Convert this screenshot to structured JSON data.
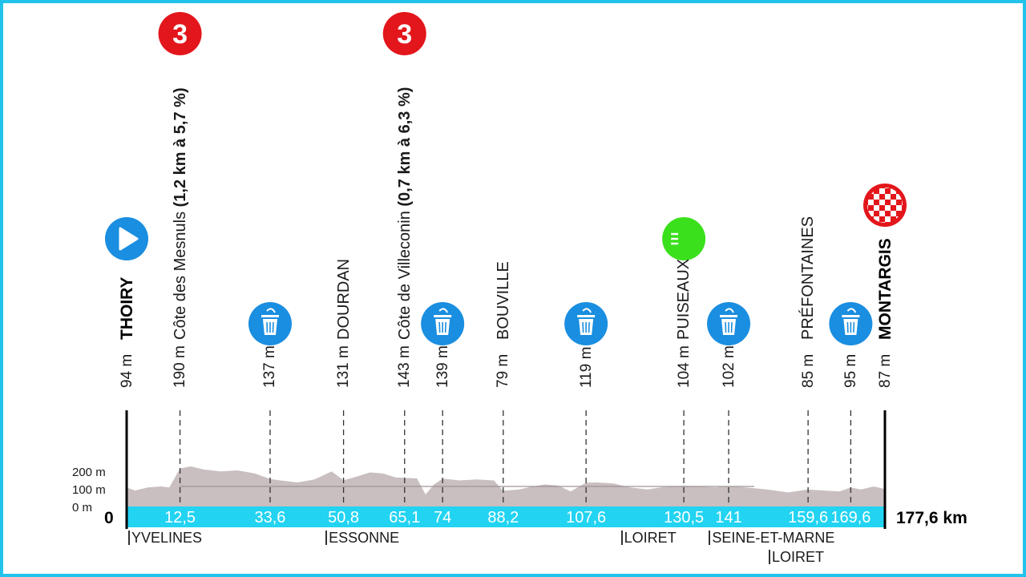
{
  "chart_data": {
    "type": "area",
    "xlabel": "",
    "ylabel": "",
    "total_distance_label": "177,6 km",
    "start_distance_label": "0",
    "x_unit": "km",
    "y_unit": "m",
    "xlim": [
      0,
      177.6
    ],
    "ylim": [
      0,
      200
    ],
    "y_ticks": [
      "0 m",
      "100 m",
      "200 m"
    ],
    "points_of_interest": [
      {
        "km": 0,
        "km_label": "",
        "altitude": "94 m",
        "name": "THOIRY",
        "bold": true,
        "icon": "start-icon"
      },
      {
        "km": 12.5,
        "km_label": "12,5",
        "altitude": "190 m",
        "name": "Côte des Mesnuls",
        "climb": "(1,2 km à 5,7 %)",
        "icon": "kom-cat3-icon",
        "cat": "3"
      },
      {
        "km": 33.6,
        "km_label": "33,6",
        "altitude": "137 m",
        "name": "",
        "icon": "bin-icon"
      },
      {
        "km": 50.8,
        "km_label": "50,8",
        "altitude": "131 m",
        "name": "DOURDAN"
      },
      {
        "km": 65.1,
        "km_label": "65,1",
        "altitude": "143 m",
        "name": "Côte de Villeconin",
        "climb": "(0,7 km à 6,3 %)",
        "icon": "kom-cat3-icon",
        "cat": "3"
      },
      {
        "km": 74,
        "km_label": "74",
        "altitude": "139 m",
        "name": "",
        "icon": "bin-icon"
      },
      {
        "km": 88.2,
        "km_label": "88,2",
        "altitude": "79 m",
        "name": "BOUVILLE"
      },
      {
        "km": 107.6,
        "km_label": "107,6",
        "altitude": "119 m",
        "name": "",
        "icon": "bin-icon"
      },
      {
        "km": 130.5,
        "km_label": "130,5",
        "altitude": "104 m",
        "name": "PUISEAUX",
        "icon": "sprint-icon",
        "sprint": "S"
      },
      {
        "km": 141,
        "km_label": "141",
        "altitude": "102 m",
        "name": "",
        "icon": "bin-icon"
      },
      {
        "km": 159.6,
        "km_label": "159,6",
        "altitude": "85 m",
        "name": "PRÉFONTAINES"
      },
      {
        "km": 169.6,
        "km_label": "169,6",
        "altitude": "95 m",
        "name": "",
        "icon": "bin-icon"
      },
      {
        "km": 177.6,
        "km_label": "",
        "altitude": "87 m",
        "name": "MONTARGIS",
        "bold": true,
        "icon": "finish-icon"
      }
    ],
    "departments": [
      {
        "km": 0,
        "label": "YVELINES"
      },
      {
        "km": 46.2,
        "label": "ESSONNE"
      },
      {
        "km": 115.4,
        "label": "LOIRET"
      },
      {
        "km": 136,
        "label": "SEINE-ET-MARNE"
      },
      {
        "km": 150,
        "label": "LOIRET",
        "row": 2
      }
    ],
    "profile": [
      [
        0,
        94
      ],
      [
        2,
        80
      ],
      [
        5,
        95
      ],
      [
        8,
        100
      ],
      [
        10,
        95
      ],
      [
        12.5,
        190
      ],
      [
        15,
        200
      ],
      [
        18,
        185
      ],
      [
        22,
        175
      ],
      [
        26,
        180
      ],
      [
        30,
        165
      ],
      [
        33.6,
        137
      ],
      [
        36,
        130
      ],
      [
        40,
        120
      ],
      [
        44,
        135
      ],
      [
        48,
        175
      ],
      [
        50.8,
        131
      ],
      [
        54,
        150
      ],
      [
        57,
        170
      ],
      [
        60,
        165
      ],
      [
        63,
        145
      ],
      [
        65.1,
        143
      ],
      [
        68,
        140
      ],
      [
        70,
        60
      ],
      [
        72,
        110
      ],
      [
        74,
        139
      ],
      [
        78,
        130
      ],
      [
        82,
        135
      ],
      [
        86,
        130
      ],
      [
        88.2,
        79
      ],
      [
        92,
        85
      ],
      [
        95,
        100
      ],
      [
        98,
        110
      ],
      [
        101,
        105
      ],
      [
        104,
        75
      ],
      [
        107.6,
        119
      ],
      [
        110,
        120
      ],
      [
        114,
        115
      ],
      [
        118,
        95
      ],
      [
        122,
        85
      ],
      [
        125,
        95
      ],
      [
        128,
        100
      ],
      [
        130.5,
        104
      ],
      [
        134,
        100
      ],
      [
        138,
        95
      ],
      [
        141,
        102
      ],
      [
        145,
        95
      ],
      [
        150,
        85
      ],
      [
        155,
        70
      ],
      [
        159.6,
        85
      ],
      [
        163,
        80
      ],
      [
        167,
        75
      ],
      [
        169.6,
        95
      ],
      [
        172,
        85
      ],
      [
        175,
        100
      ],
      [
        177.6,
        87
      ]
    ]
  }
}
